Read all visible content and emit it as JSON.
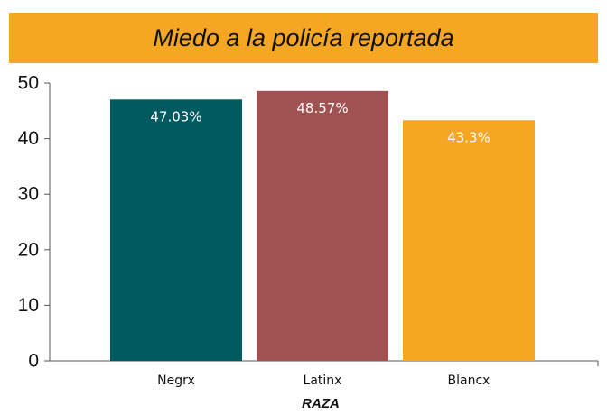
{
  "chart_data": {
    "type": "bar",
    "title": "Miedo a la policía reportada",
    "xlabel": "RAZA",
    "ylabel": "",
    "categories": [
      "Negrx",
      "Latinx",
      "Blancx"
    ],
    "values": [
      47.03,
      48.57,
      43.3
    ],
    "value_labels": [
      "47.03%",
      "48.57%",
      "43.3%"
    ],
    "bar_colors": [
      "#005b60",
      "#a05252",
      "#f5a623"
    ],
    "ylim": [
      0,
      50
    ],
    "yticks": [
      0,
      10,
      20,
      30,
      40,
      50
    ],
    "grid": false,
    "legend": "none"
  },
  "colors": {
    "banner": "#f5a623",
    "axis": "#555555",
    "label_text": "#ffffff"
  }
}
